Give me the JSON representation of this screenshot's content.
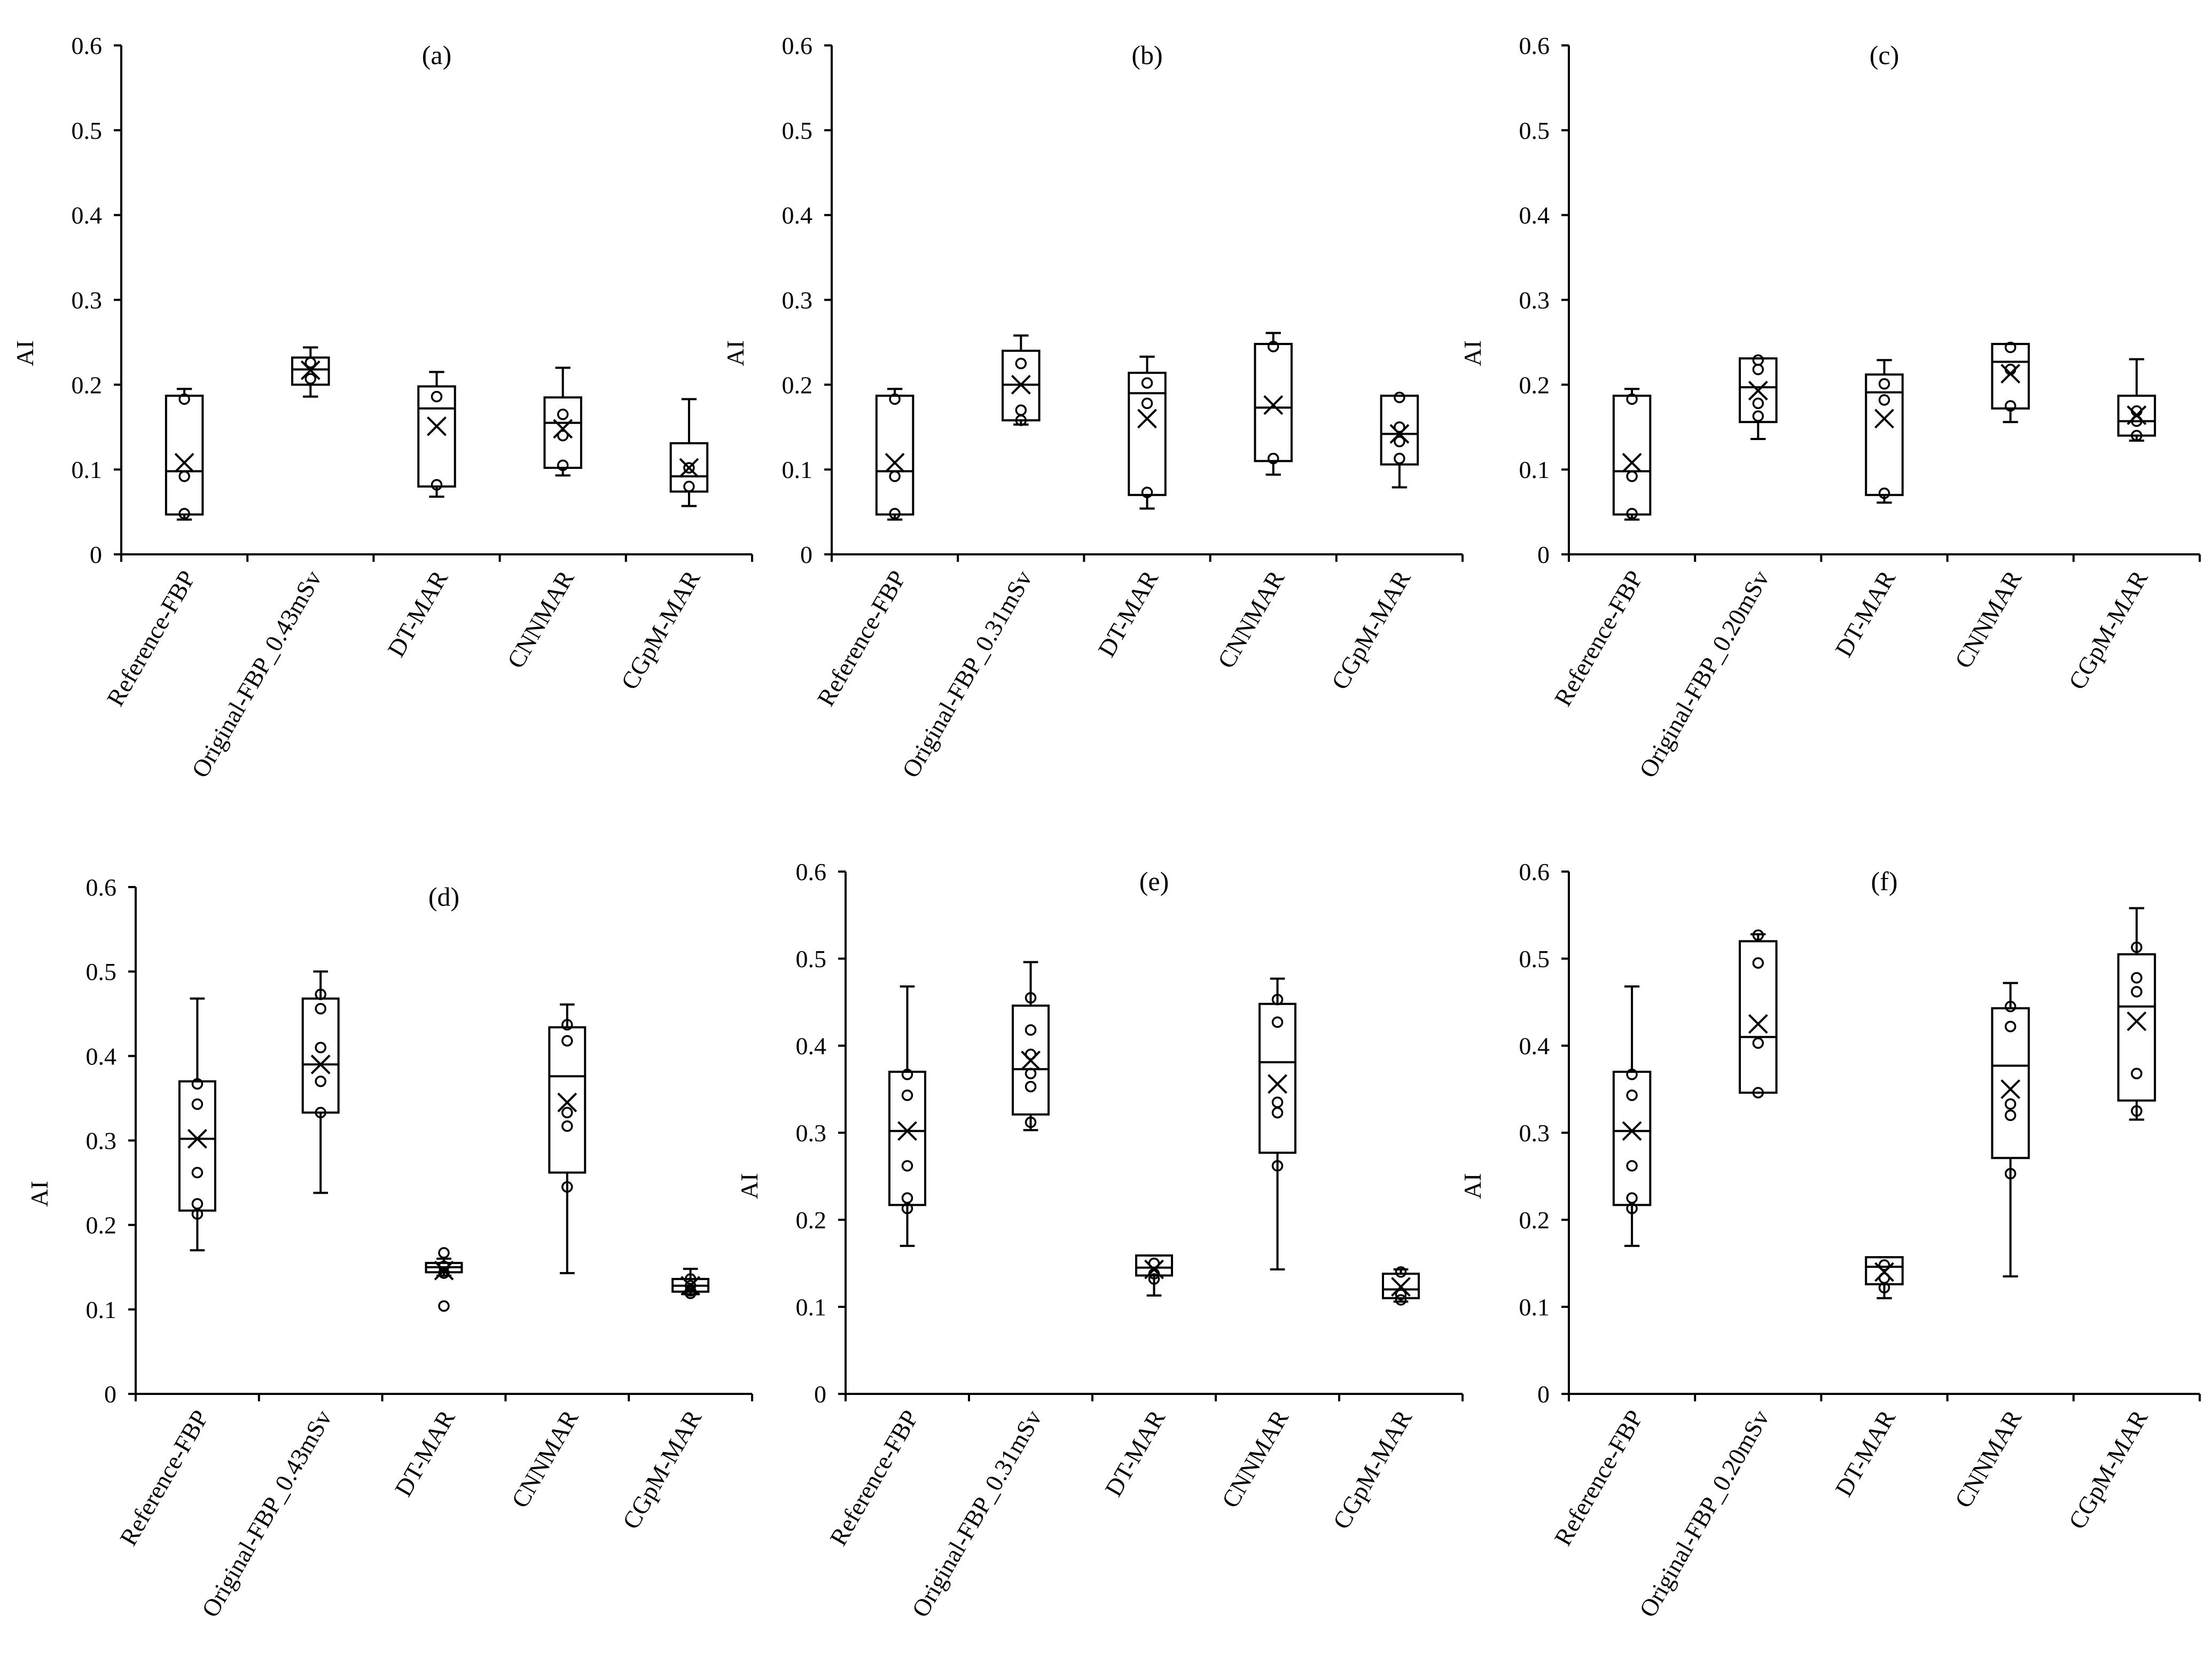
{
  "chart_data": [
    {
      "panel": "(a)",
      "type": "box",
      "ylabel": "AI",
      "ylim": [
        0,
        0.6
      ],
      "yticks": [
        "0",
        "0.1",
        "0.2",
        "0.3",
        "0.4",
        "0.5",
        "0.6"
      ],
      "categories": [
        "Reference-FBP",
        "Original-FBP_0.43mSv",
        "DT-MAR",
        "CNNMAR",
        "CGpM-MAR"
      ],
      "boxes": [
        {
          "min": 0.041,
          "q1": 0.047,
          "median": 0.098,
          "q3": 0.187,
          "max": 0.195,
          "mean": 0.108,
          "points": [
            0.048,
            0.092,
            0.183
          ]
        },
        {
          "min": 0.186,
          "q1": 0.2,
          "median": 0.218,
          "q3": 0.232,
          "max": 0.244,
          "mean": 0.217,
          "points": [
            0.207,
            0.226
          ]
        },
        {
          "min": 0.068,
          "q1": 0.08,
          "median": 0.172,
          "q3": 0.198,
          "max": 0.215,
          "mean": 0.151,
          "points": [
            0.082,
            0.186
          ]
        },
        {
          "min": 0.093,
          "q1": 0.102,
          "median": 0.155,
          "q3": 0.185,
          "max": 0.22,
          "mean": 0.148,
          "points": [
            0.105,
            0.14,
            0.165
          ]
        },
        {
          "min": 0.057,
          "q1": 0.074,
          "median": 0.092,
          "q3": 0.131,
          "max": 0.183,
          "mean": 0.102,
          "points": [
            0.08,
            0.102
          ]
        }
      ]
    },
    {
      "panel": "(b)",
      "type": "box",
      "ylabel": "AI",
      "ylim": [
        0,
        0.6
      ],
      "yticks": [
        "0",
        "0.1",
        "0.2",
        "0.3",
        "0.4",
        "0.5",
        "0.6"
      ],
      "categories": [
        "Reference-FBP",
        "Original-FBP_0.31mSv",
        "DT-MAR",
        "CNNMAR",
        "CGpM-MAR"
      ],
      "boxes": [
        {
          "min": 0.041,
          "q1": 0.047,
          "median": 0.098,
          "q3": 0.187,
          "max": 0.195,
          "mean": 0.108,
          "points": [
            0.048,
            0.092,
            0.183
          ]
        },
        {
          "min": 0.153,
          "q1": 0.158,
          "median": 0.2,
          "q3": 0.24,
          "max": 0.258,
          "mean": 0.2,
          "points": [
            0.158,
            0.17,
            0.225
          ]
        },
        {
          "min": 0.054,
          "q1": 0.07,
          "median": 0.19,
          "q3": 0.214,
          "max": 0.233,
          "mean": 0.16,
          "points": [
            0.073,
            0.178,
            0.202
          ]
        },
        {
          "min": 0.094,
          "q1": 0.11,
          "median": 0.173,
          "q3": 0.248,
          "max": 0.261,
          "mean": 0.176,
          "points": [
            0.113,
            0.245
          ]
        },
        {
          "min": 0.079,
          "q1": 0.106,
          "median": 0.142,
          "q3": 0.187,
          "max": 0.187,
          "mean": 0.142,
          "points": [
            0.113,
            0.133,
            0.15,
            0.185
          ]
        }
      ]
    },
    {
      "panel": "(c)",
      "type": "box",
      "ylabel": "AI",
      "ylim": [
        0,
        0.6
      ],
      "yticks": [
        "0",
        "0.1",
        "0.2",
        "0.3",
        "0.4",
        "0.5",
        "0.6"
      ],
      "categories": [
        "Reference-FBP",
        "Original-FBP_0.20mSv",
        "DT-MAR",
        "CNNMAR",
        "CGpM-MAR"
      ],
      "boxes": [
        {
          "min": 0.041,
          "q1": 0.047,
          "median": 0.098,
          "q3": 0.187,
          "max": 0.195,
          "mean": 0.108,
          "points": [
            0.048,
            0.092,
            0.183
          ]
        },
        {
          "min": 0.136,
          "q1": 0.156,
          "median": 0.197,
          "q3": 0.231,
          "max": 0.231,
          "mean": 0.193,
          "points": [
            0.163,
            0.178,
            0.218,
            0.229
          ]
        },
        {
          "min": 0.061,
          "q1": 0.07,
          "median": 0.191,
          "q3": 0.212,
          "max": 0.229,
          "mean": 0.16,
          "points": [
            0.072,
            0.182,
            0.201
          ]
        },
        {
          "min": 0.156,
          "q1": 0.172,
          "median": 0.227,
          "q3": 0.248,
          "max": 0.248,
          "mean": 0.213,
          "points": [
            0.175,
            0.218,
            0.244
          ]
        },
        {
          "min": 0.134,
          "q1": 0.14,
          "median": 0.157,
          "q3": 0.187,
          "max": 0.23,
          "mean": 0.164,
          "points": [
            0.14,
            0.157,
            0.169
          ]
        }
      ]
    },
    {
      "panel": "(d)",
      "type": "box",
      "ylabel": "AI",
      "ylim": [
        0,
        0.6
      ],
      "yticks": [
        "0",
        "0.1",
        "0.2",
        "0.3",
        "0.4",
        "0.5",
        "0.6"
      ],
      "categories": [
        "Reference-FBP",
        "Original-FBP_0.43mSv",
        "DT-MAR",
        "CNNMAR",
        "CGpM-MAR"
      ],
      "boxes": [
        {
          "min": 0.17,
          "q1": 0.217,
          "median": 0.302,
          "q3": 0.37,
          "max": 0.468,
          "mean": 0.302,
          "points": [
            0.213,
            0.225,
            0.262,
            0.343,
            0.367
          ]
        },
        {
          "min": 0.238,
          "q1": 0.333,
          "median": 0.39,
          "q3": 0.468,
          "max": 0.5,
          "mean": 0.39,
          "points": [
            0.333,
            0.37,
            0.41,
            0.456,
            0.473
          ]
        },
        {
          "min": 0.14,
          "q1": 0.144,
          "median": 0.15,
          "q3": 0.155,
          "max": 0.16,
          "mean": 0.146,
          "points": [
            0.104,
            0.143,
            0.151,
            0.167
          ]
        },
        {
          "min": 0.143,
          "q1": 0.262,
          "median": 0.376,
          "q3": 0.434,
          "max": 0.461,
          "mean": 0.345,
          "points": [
            0.245,
            0.317,
            0.333,
            0.418,
            0.437
          ]
        },
        {
          "min": 0.118,
          "q1": 0.121,
          "median": 0.128,
          "q3": 0.136,
          "max": 0.148,
          "mean": 0.128,
          "points": [
            0.119,
            0.122,
            0.128,
            0.136
          ]
        }
      ]
    },
    {
      "panel": "(e)",
      "type": "box",
      "ylabel": "AI",
      "ylim": [
        0,
        0.6
      ],
      "yticks": [
        "0",
        "0.1",
        "0.2",
        "0.3",
        "0.4",
        "0.5",
        "0.6"
      ],
      "categories": [
        "Reference-FBP",
        "Original-FBP_0.31mSv",
        "DT-MAR",
        "CNNMAR",
        "CGpM-MAR"
      ],
      "boxes": [
        {
          "min": 0.17,
          "q1": 0.217,
          "median": 0.302,
          "q3": 0.37,
          "max": 0.468,
          "mean": 0.302,
          "points": [
            0.213,
            0.225,
            0.262,
            0.343,
            0.367
          ]
        },
        {
          "min": 0.303,
          "q1": 0.321,
          "median": 0.373,
          "q3": 0.446,
          "max": 0.496,
          "mean": 0.383,
          "points": [
            0.312,
            0.353,
            0.368,
            0.39,
            0.418,
            0.455
          ]
        },
        {
          "min": 0.113,
          "q1": 0.136,
          "median": 0.145,
          "q3": 0.159,
          "max": 0.159,
          "mean": 0.143,
          "points": [
            0.132,
            0.138,
            0.15
          ]
        },
        {
          "min": 0.143,
          "q1": 0.277,
          "median": 0.381,
          "q3": 0.448,
          "max": 0.477,
          "mean": 0.356,
          "points": [
            0.262,
            0.323,
            0.335,
            0.427,
            0.453
          ]
        },
        {
          "min": 0.106,
          "q1": 0.11,
          "median": 0.12,
          "q3": 0.138,
          "max": 0.143,
          "mean": 0.123,
          "points": [
            0.108,
            0.114,
            0.14
          ]
        }
      ]
    },
    {
      "panel": "(f)",
      "type": "box",
      "ylabel": "AI",
      "ylim": [
        0,
        0.6
      ],
      "yticks": [
        "0",
        "0.1",
        "0.2",
        "0.3",
        "0.4",
        "0.5",
        "0.6"
      ],
      "categories": [
        "Reference-FBP",
        "Original-FBP_0.20mSv",
        "DT-MAR",
        "CNNMAR",
        "CGpM-MAR"
      ],
      "boxes": [
        {
          "min": 0.17,
          "q1": 0.217,
          "median": 0.302,
          "q3": 0.37,
          "max": 0.468,
          "mean": 0.302,
          "points": [
            0.213,
            0.225,
            0.262,
            0.343,
            0.367
          ]
        },
        {
          "min": 0.346,
          "q1": 0.346,
          "median": 0.41,
          "q3": 0.52,
          "max": 0.528,
          "mean": 0.425,
          "points": [
            0.346,
            0.403,
            0.495,
            0.527
          ]
        },
        {
          "min": 0.11,
          "q1": 0.126,
          "median": 0.146,
          "q3": 0.157,
          "max": 0.157,
          "mean": 0.14,
          "points": [
            0.122,
            0.133,
            0.148
          ]
        },
        {
          "min": 0.135,
          "q1": 0.271,
          "median": 0.377,
          "q3": 0.443,
          "max": 0.472,
          "mean": 0.35,
          "points": [
            0.253,
            0.32,
            0.333,
            0.422,
            0.445
          ]
        },
        {
          "min": 0.315,
          "q1": 0.337,
          "median": 0.445,
          "q3": 0.505,
          "max": 0.558,
          "mean": 0.428,
          "points": [
            0.325,
            0.368,
            0.462,
            0.478,
            0.513
          ]
        }
      ]
    }
  ]
}
